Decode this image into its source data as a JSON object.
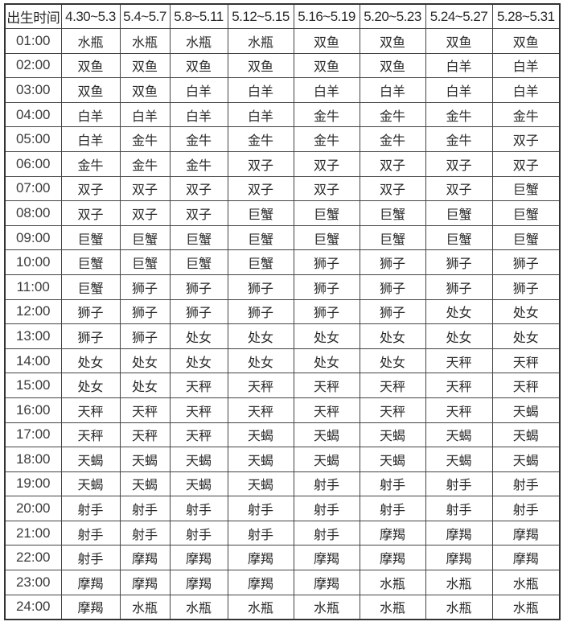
{
  "table": {
    "header": [
      "出生时间",
      "4.30~5.3",
      "5.4~5.7",
      "5.8~5.11",
      "5.12~5.15",
      "5.16~5.19",
      "5.20~5.23",
      "5.24~5.27",
      "5.28~5.31"
    ],
    "rows": [
      [
        "01:00",
        "水瓶",
        "水瓶",
        "水瓶",
        "水瓶",
        "双鱼",
        "双鱼",
        "双鱼",
        "双鱼"
      ],
      [
        "02:00",
        "双鱼",
        "双鱼",
        "双鱼",
        "双鱼",
        "双鱼",
        "双鱼",
        "白羊",
        "白羊"
      ],
      [
        "03:00",
        "双鱼",
        "双鱼",
        "白羊",
        "白羊",
        "白羊",
        "白羊",
        "白羊",
        "白羊"
      ],
      [
        "04:00",
        "白羊",
        "白羊",
        "白羊",
        "白羊",
        "金牛",
        "金牛",
        "金牛",
        "金牛"
      ],
      [
        "05:00",
        "白羊",
        "金牛",
        "金牛",
        "金牛",
        "金牛",
        "金牛",
        "金牛",
        "双子"
      ],
      [
        "06:00",
        "金牛",
        "金牛",
        "金牛",
        "双子",
        "双子",
        "双子",
        "双子",
        "双子"
      ],
      [
        "07:00",
        "双子",
        "双子",
        "双子",
        "双子",
        "双子",
        "双子",
        "双子",
        "巨蟹"
      ],
      [
        "08:00",
        "双子",
        "双子",
        "双子",
        "巨蟹",
        "巨蟹",
        "巨蟹",
        "巨蟹",
        "巨蟹"
      ],
      [
        "09:00",
        "巨蟹",
        "巨蟹",
        "巨蟹",
        "巨蟹",
        "巨蟹",
        "巨蟹",
        "巨蟹",
        "巨蟹"
      ],
      [
        "10:00",
        "巨蟹",
        "巨蟹",
        "巨蟹",
        "巨蟹",
        "狮子",
        "狮子",
        "狮子",
        "狮子"
      ],
      [
        "11:00",
        "巨蟹",
        "狮子",
        "狮子",
        "狮子",
        "狮子",
        "狮子",
        "狮子",
        "狮子"
      ],
      [
        "12:00",
        "狮子",
        "狮子",
        "狮子",
        "狮子",
        "狮子",
        "狮子",
        "处女",
        "处女"
      ],
      [
        "13:00",
        "狮子",
        "狮子",
        "处女",
        "处女",
        "处女",
        "处女",
        "处女",
        "处女"
      ],
      [
        "14:00",
        "处女",
        "处女",
        "处女",
        "处女",
        "处女",
        "处女",
        "天秤",
        "天秤"
      ],
      [
        "15:00",
        "处女",
        "处女",
        "天秤",
        "天秤",
        "天秤",
        "天秤",
        "天秤",
        "天秤"
      ],
      [
        "16:00",
        "天秤",
        "天秤",
        "天秤",
        "天秤",
        "天秤",
        "天秤",
        "天秤",
        "天蝎"
      ],
      [
        "17:00",
        "天秤",
        "天秤",
        "天秤",
        "天蝎",
        "天蝎",
        "天蝎",
        "天蝎",
        "天蝎"
      ],
      [
        "18:00",
        "天蝎",
        "天蝎",
        "天蝎",
        "天蝎",
        "天蝎",
        "天蝎",
        "天蝎",
        "天蝎"
      ],
      [
        "19:00",
        "天蝎",
        "天蝎",
        "天蝎",
        "天蝎",
        "射手",
        "射手",
        "射手",
        "射手"
      ],
      [
        "20:00",
        "射手",
        "射手",
        "射手",
        "射手",
        "射手",
        "射手",
        "射手",
        "射手"
      ],
      [
        "21:00",
        "射手",
        "射手",
        "射手",
        "射手",
        "射手",
        "摩羯",
        "摩羯",
        "摩羯"
      ],
      [
        "22:00",
        "射手",
        "摩羯",
        "摩羯",
        "摩羯",
        "摩羯",
        "摩羯",
        "摩羯",
        "摩羯"
      ],
      [
        "23:00",
        "摩羯",
        "摩羯",
        "摩羯",
        "摩羯",
        "摩羯",
        "水瓶",
        "水瓶",
        "水瓶"
      ],
      [
        "24:00",
        "摩羯",
        "水瓶",
        "水瓶",
        "水瓶",
        "水瓶",
        "水瓶",
        "水瓶",
        "水瓶"
      ]
    ]
  }
}
